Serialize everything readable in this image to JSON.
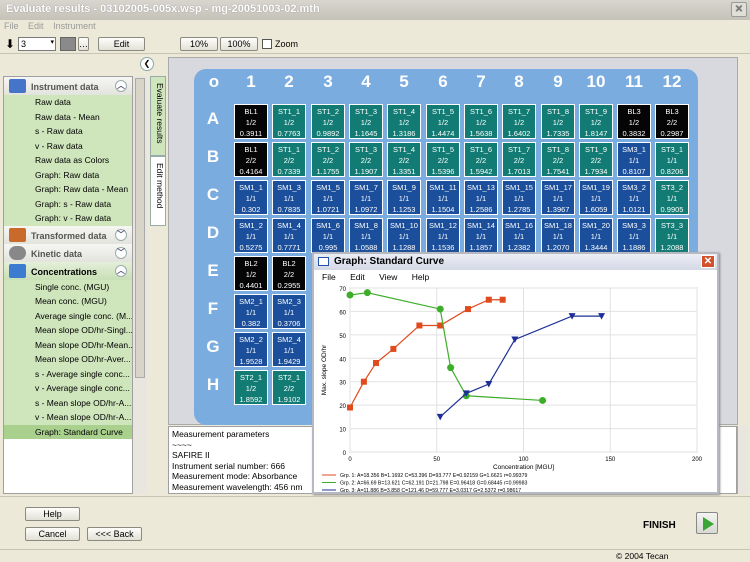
{
  "window": {
    "title": "Evaluate results - 03102005-005x.wsp - mg-20051003-02.mth",
    "close": "✕"
  },
  "menu": [
    "File",
    "Edit",
    "Instrument"
  ],
  "toolbar": {
    "arrow": "⬇",
    "spin_value": "3",
    "edit": "Edit",
    "zoom10": "10%",
    "zoom100": "100%",
    "zoom_label": "Zoom"
  },
  "collapse_btn": "❮",
  "sidebar": {
    "instrument": {
      "title": "Instrument data",
      "items": [
        "Raw data",
        "Raw data - Mean",
        "s - Raw data",
        "v - Raw data",
        "Raw data as Colors",
        "Graph: Raw data",
        "Graph: Raw data - Mean",
        "Graph: s - Raw data",
        "Graph: v - Raw data"
      ]
    },
    "transformed": {
      "title": "Transformed data"
    },
    "kinetic": {
      "title": "Kinetic data"
    },
    "concentrations": {
      "title": "Concentrations",
      "items": [
        "Single conc. (MGU)",
        "Mean conc. (MGU)",
        "Average single conc. (M...",
        "Mean slope OD/hr-Singl...",
        "Mean slope OD/hr-Mean...",
        "Mean slope OD/hr-Aver...",
        "s - Average single conc...",
        "v - Average single conc...",
        "s - Mean slope OD/hr-A...",
        "v - Mean slope OD/hr-A...",
        "Graph: Standard Curve"
      ]
    }
  },
  "vtabs": [
    "Evaluate results",
    "Edit method"
  ],
  "plate": {
    "cols": [
      "o",
      "1",
      "2",
      "3",
      "4",
      "5",
      "6",
      "7",
      "8",
      "9",
      "10",
      "11",
      "12"
    ],
    "rows": [
      "A",
      "B",
      "C",
      "D",
      "E",
      "F",
      "G",
      "H"
    ],
    "cells": [
      [
        [
          "BL1",
          "1/2",
          "0.3911",
          "bk"
        ],
        [
          "ST1_1",
          "1/2",
          "0.7763",
          "tl"
        ],
        [
          "ST1_2",
          "1/2",
          "0.9892",
          "tl"
        ],
        [
          "ST1_3",
          "1/2",
          "1.1645",
          "tl"
        ],
        [
          "ST1_4",
          "1/2",
          "1.3186",
          "tl"
        ],
        [
          "ST1_5",
          "1/2",
          "1.4474",
          "tl"
        ],
        [
          "ST1_6",
          "1/2",
          "1.5638",
          "tl"
        ],
        [
          "ST1_7",
          "1/2",
          "1.6402",
          "tl"
        ],
        [
          "ST1_8",
          "1/2",
          "1.7335",
          "tl"
        ],
        [
          "ST1_9",
          "1/2",
          "1.8147",
          "tl"
        ],
        [
          "BL3",
          "1/2",
          "0.3832",
          "bk"
        ],
        [
          "BL3",
          "2/2",
          "0.2987",
          "bk"
        ]
      ],
      [
        [
          "BL1",
          "2/2",
          "0.4164",
          "bk"
        ],
        [
          "ST1_1",
          "2/2",
          "0.7339",
          "tl"
        ],
        [
          "ST1_2",
          "2/2",
          "1.1755",
          "tl"
        ],
        [
          "ST1_3",
          "2/2",
          "1.1907",
          "tl"
        ],
        [
          "ST1_4",
          "2/2",
          "1.3351",
          "tl"
        ],
        [
          "ST1_5",
          "2/2",
          "1.5396",
          "tl"
        ],
        [
          "ST1_6",
          "2/2",
          "1.5942",
          "tl"
        ],
        [
          "ST1_7",
          "2/2",
          "1.7013",
          "tl"
        ],
        [
          "ST1_8",
          "2/2",
          "1.7541",
          "tl"
        ],
        [
          "ST1_9",
          "2/2",
          "1.7934",
          "tl"
        ],
        [
          "SM3_1",
          "1/1",
          "0.8107",
          "bl"
        ],
        [
          "ST3_1",
          "1/1",
          "0.8206",
          "tl"
        ]
      ],
      [
        [
          "SM1_1",
          "1/1",
          "0.302",
          "bl"
        ],
        [
          "SM1_3",
          "1/1",
          "0.7835",
          "bl"
        ],
        [
          "SM1_5",
          "1/1",
          "1.0721",
          "bl"
        ],
        [
          "SM1_7",
          "1/1",
          "1.0972",
          "bl"
        ],
        [
          "SM1_9",
          "1/1",
          "1.1253",
          "bl"
        ],
        [
          "SM1_11",
          "1/1",
          "1.1504",
          "bl"
        ],
        [
          "SM1_13",
          "1/1",
          "1.2586",
          "bl"
        ],
        [
          "SM1_15",
          "1/1",
          "1.2785",
          "bl"
        ],
        [
          "SM1_17",
          "1/1",
          "1.3967",
          "bl"
        ],
        [
          "SM1_19",
          "1/1",
          "1.6059",
          "bl"
        ],
        [
          "SM3_2",
          "1/1",
          "1.0121",
          "bl"
        ],
        [
          "ST3_2",
          "1/1",
          "0.9905",
          "tl"
        ]
      ],
      [
        [
          "SM1_2",
          "1/1",
          "0.5275",
          "bl"
        ],
        [
          "SM1_4",
          "1/1",
          "0.7771",
          "bl"
        ],
        [
          "SM1_6",
          "1/1",
          "0.995",
          "bl"
        ],
        [
          "SM1_8",
          "1/1",
          "1.0588",
          "bl"
        ],
        [
          "SM1_10",
          "1/1",
          "1.1288",
          "bl"
        ],
        [
          "SM1_12",
          "1/1",
          "1.1536",
          "bl"
        ],
        [
          "SM1_14",
          "1/1",
          "1.1857",
          "bl"
        ],
        [
          "SM1_16",
          "1/1",
          "1.2382",
          "bl"
        ],
        [
          "SM1_18",
          "1/1",
          "1.2070",
          "bl"
        ],
        [
          "SM1_20",
          "1/1",
          "1.3444",
          "bl"
        ],
        [
          "SM3_3",
          "1/1",
          "1.1886",
          "bl"
        ],
        [
          "ST3_3",
          "1/1",
          "1.2088",
          "tl"
        ]
      ],
      [
        [
          "BL2",
          "1/2",
          "0.4401",
          "bk"
        ],
        [
          "BL2",
          "2/2",
          "0.2955",
          "bk"
        ]
      ],
      [
        [
          "SM2_1",
          "1/1",
          "0.382",
          "bl"
        ],
        [
          "SM2_3",
          "1/1",
          "0.3706",
          "bl"
        ]
      ],
      [
        [
          "SM2_2",
          "1/1",
          "1.9528",
          "bl"
        ],
        [
          "SM2_4",
          "1/1",
          "1.9429",
          "bl"
        ]
      ],
      [
        [
          "ST2_1",
          "1/2",
          "1.8592",
          "tl"
        ],
        [
          "ST2_1",
          "2/2",
          "1.9102",
          "tl"
        ]
      ]
    ]
  },
  "graph": {
    "title": "Graph: Standard Curve",
    "close": "✕",
    "menu": [
      "File",
      "Edit",
      "View",
      "Help"
    ],
    "ylabel": "Max. slope OD/hr",
    "xlabel": "Concentration [MGU]",
    "legend": [
      "Grp. 1: A=18.356 B=1.1692 C=53.396 D=93.777 E=0.92159 G=1.6621 r=0.99379",
      "Grp. 2: A=66.69 B=13.621 C=62.191 D=21.798 E=0.96418 G=0.68445 r=0.99983",
      "Grp. 3: A=11.886 B=3.858 C=121.46 D=59.777 E=3.0317 G=2.5372 r=0.98617"
    ],
    "colors": {
      "g1": "#e04a1c",
      "g2": "#3eae2a",
      "g3": "#1d2f96"
    }
  },
  "chart_data": {
    "type": "scatter",
    "ylabel": "Max. slope OD/hr",
    "xlabel": "Concentration [MGU]",
    "xlim": [
      0,
      200
    ],
    "ylim": [
      0,
      70
    ],
    "xticks": [
      0,
      50,
      100,
      150,
      200
    ],
    "yticks": [
      0,
      10,
      20,
      30,
      40,
      50,
      60,
      70
    ],
    "grid": true,
    "legend_position": "bottom",
    "series": [
      {
        "name": "Grp. 1",
        "x": [
          0,
          8,
          15,
          25,
          40,
          52,
          68,
          80,
          88
        ],
        "y": [
          19,
          30,
          38,
          44,
          54,
          54,
          61,
          65,
          65
        ]
      },
      {
        "name": "Grp. 2",
        "x": [
          0,
          10,
          52,
          58,
          67,
          111
        ],
        "y": [
          67,
          68,
          61,
          36,
          24,
          22
        ]
      },
      {
        "name": "Grp. 3",
        "x": [
          52,
          67,
          80,
          95,
          128,
          145
        ],
        "y": [
          15,
          25,
          29,
          48,
          58,
          58
        ]
      }
    ]
  },
  "params": {
    "lines": [
      "Measurement parameters",
      "~~~~",
      "SAFIRE II",
      "Instrument serial number: 666",
      "Measurement mode: Absorbance",
      "Measurement wavelength: 456 nm"
    ]
  },
  "footer": {
    "help": "Help",
    "cancel": "Cancel",
    "back": "<<< Back",
    "finish": "FINISH"
  },
  "status": {
    "copyright": "© 2004 Tecan"
  }
}
